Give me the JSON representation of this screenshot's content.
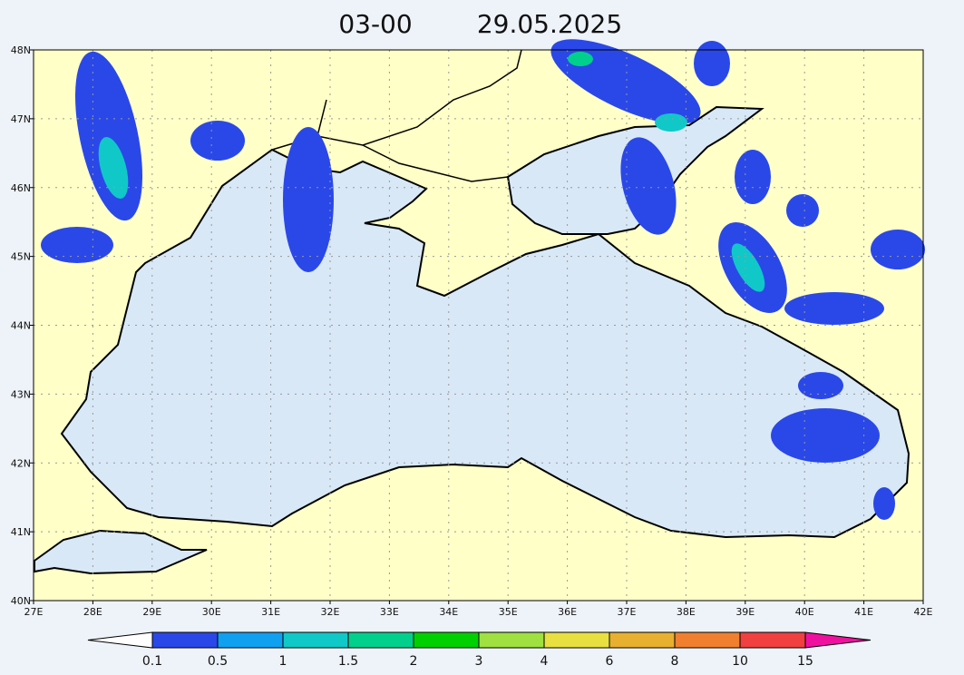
{
  "title": {
    "time": "03-00",
    "date": "29.05.2025"
  },
  "map": {
    "lat_labels": [
      "48N",
      "47N",
      "46N",
      "45N",
      "44N",
      "43N",
      "42N",
      "41N",
      "40N"
    ],
    "lon_labels": [
      "27E",
      "28E",
      "29E",
      "30E",
      "31E",
      "32E",
      "33E",
      "34E",
      "35E",
      "36E",
      "37E",
      "38E",
      "39E",
      "40E",
      "41E",
      "42E"
    ]
  },
  "colorbar": {
    "labels": [
      "0.1",
      "0.5",
      "1",
      "1.5",
      "2",
      "3",
      "4",
      "6",
      "8",
      "10",
      "15"
    ],
    "colors": [
      "#ffffff",
      "#2a48e8",
      "#10a0f0",
      "#10c8c8",
      "#00d08c",
      "#00d000",
      "#a0e040",
      "#e8e040",
      "#e8b030",
      "#f08030",
      "#f04040",
      "#f010a0"
    ]
  }
}
